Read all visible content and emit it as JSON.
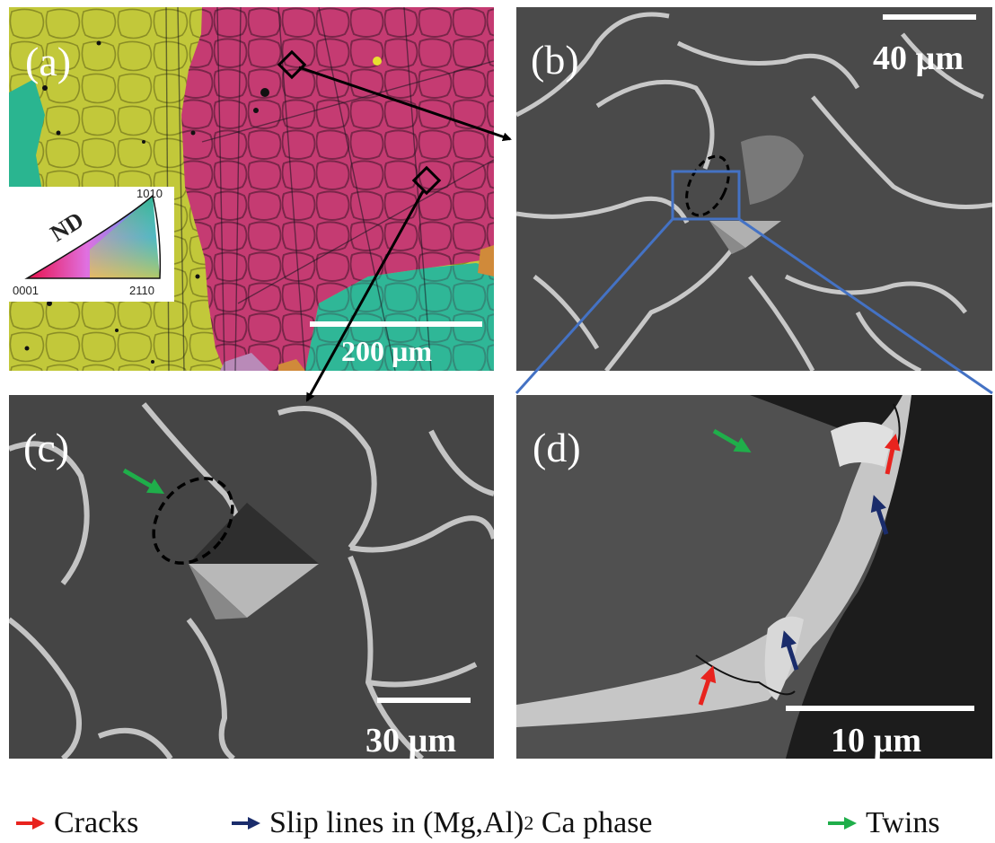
{
  "panels": {
    "a": {
      "label": "(a)",
      "scale_bar": "200 µm"
    },
    "b": {
      "label": "(b)",
      "scale_bar": "40 µm"
    },
    "c": {
      "label": "(c)",
      "scale_bar": "30 µm"
    },
    "d": {
      "label": "(d)",
      "scale_bar": "10 µm"
    }
  },
  "ipf_key": {
    "axis": "ND",
    "corner_bottom_left": "0001",
    "corner_bottom_right": "2110",
    "corner_top": "1010"
  },
  "legend": [
    {
      "label": "Cracks",
      "color": "#e8231e"
    },
    {
      "label": "Slip lines in (Mg,Al)",
      "subscript": "2",
      "suffix": "Ca phase",
      "color": "#1a2c6b"
    },
    {
      "label": "Twins",
      "color": "#1fae4a"
    }
  ]
}
